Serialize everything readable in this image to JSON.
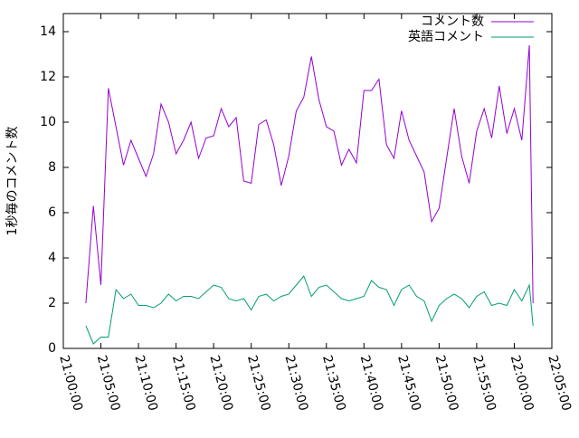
{
  "chart_data": {
    "type": "line",
    "ylabel": "1秒毎のコメント数",
    "x": [
      "21:03:00",
      "21:04:00",
      "21:05:00",
      "21:06:00",
      "21:07:00",
      "21:08:00",
      "21:09:00",
      "21:10:00",
      "21:11:00",
      "21:12:00",
      "21:13:00",
      "21:14:00",
      "21:15:00",
      "21:16:00",
      "21:17:00",
      "21:18:00",
      "21:19:00",
      "21:20:00",
      "21:21:00",
      "21:22:00",
      "21:23:00",
      "21:24:00",
      "21:25:00",
      "21:26:00",
      "21:27:00",
      "21:28:00",
      "21:29:00",
      "21:30:00",
      "21:31:00",
      "21:32:00",
      "21:33:00",
      "21:34:00",
      "21:35:00",
      "21:36:00",
      "21:37:00",
      "21:38:00",
      "21:39:00",
      "21:40:00",
      "21:41:00",
      "21:42:00",
      "21:43:00",
      "21:44:00",
      "21:45:00",
      "21:46:00",
      "21:47:00",
      "21:48:00",
      "21:49:00",
      "21:50:00",
      "21:51:00",
      "21:52:00",
      "21:53:00",
      "21:54:00",
      "21:55:00",
      "21:56:00",
      "21:57:00",
      "21:58:00",
      "21:59:00",
      "22:00:00",
      "22:01:00",
      "22:02:00",
      "22:02:30"
    ],
    "series": [
      {
        "name": "コメント数",
        "color": "#9400d3",
        "values": [
          2.0,
          6.3,
          2.8,
          11.5,
          9.8,
          8.1,
          9.2,
          8.4,
          7.6,
          8.6,
          10.8,
          10.0,
          8.6,
          9.2,
          10.0,
          8.4,
          9.3,
          9.4,
          10.6,
          9.8,
          10.2,
          7.4,
          7.3,
          9.9,
          10.1,
          9.0,
          7.2,
          8.5,
          10.5,
          11.1,
          12.9,
          11.0,
          9.8,
          9.6,
          8.1,
          8.8,
          8.2,
          11.4,
          11.4,
          11.9,
          9.0,
          8.4,
          10.5,
          9.2,
          8.5,
          7.8,
          5.6,
          6.2,
          8.4,
          10.6,
          8.5,
          7.3,
          9.6,
          10.6,
          9.3,
          11.6,
          9.5,
          10.6,
          9.2,
          13.4,
          2.0
        ]
      },
      {
        "name": "英語コメント",
        "color": "#009e73",
        "values": [
          1.0,
          0.2,
          0.5,
          0.5,
          2.6,
          2.2,
          2.4,
          1.9,
          1.9,
          1.8,
          2.0,
          2.4,
          2.1,
          2.3,
          2.3,
          2.2,
          2.5,
          2.8,
          2.7,
          2.2,
          2.1,
          2.2,
          1.7,
          2.3,
          2.4,
          2.1,
          2.3,
          2.4,
          2.8,
          3.2,
          2.3,
          2.7,
          2.8,
          2.5,
          2.2,
          2.1,
          2.2,
          2.3,
          3.0,
          2.7,
          2.6,
          1.9,
          2.6,
          2.8,
          2.3,
          2.1,
          1.2,
          1.9,
          2.2,
          2.4,
          2.2,
          1.8,
          2.3,
          2.5,
          1.9,
          2.0,
          1.9,
          2.6,
          2.1,
          2.8,
          1.0
        ]
      }
    ],
    "xlim": [
      "21:00:00",
      "22:05:00"
    ],
    "xticks": [
      "21:00:00",
      "21:05:00",
      "21:10:00",
      "21:15:00",
      "21:20:00",
      "21:25:00",
      "21:30:00",
      "21:35:00",
      "21:40:00",
      "21:45:00",
      "21:50:00",
      "21:55:00",
      "22:00:00",
      "22:05:00"
    ],
    "ylim": [
      0,
      14.8
    ],
    "yticks": [
      0,
      2,
      4,
      6,
      8,
      10,
      12,
      14
    ],
    "legend": "top-right"
  }
}
